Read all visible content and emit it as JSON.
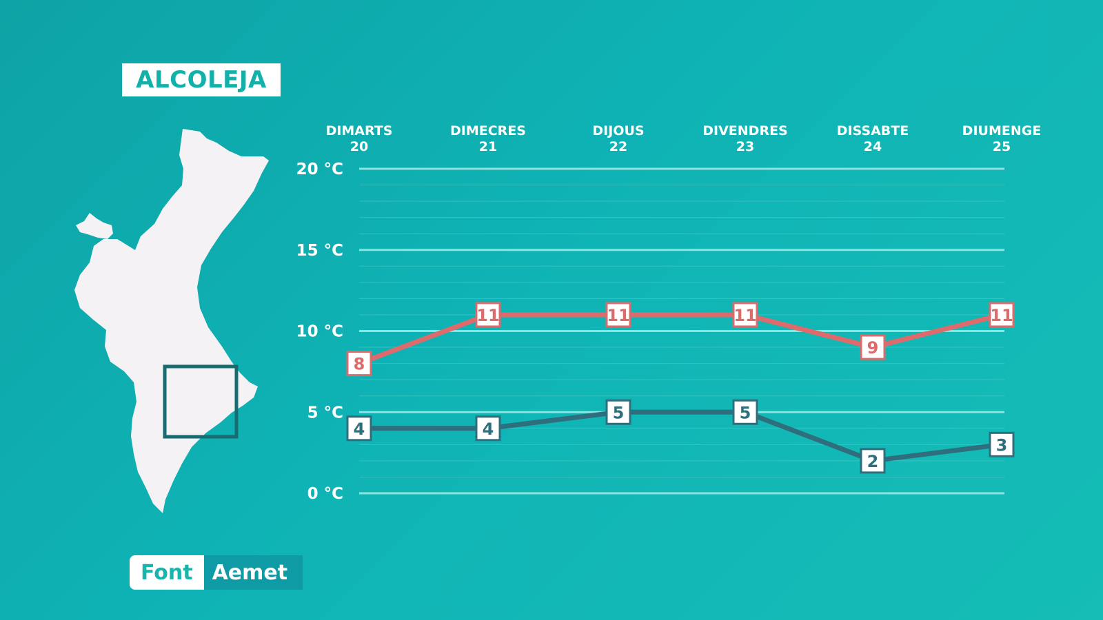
{
  "location": "ALCOLEJA",
  "source": {
    "label": "Font",
    "value": "Aemet"
  },
  "colors": {
    "background": "#0fb3b5",
    "max_series": "#de6b6b",
    "min_series": "#2f6e7c",
    "gridline": "#8fe3de"
  },
  "chart_data": {
    "type": "line",
    "categories": [
      {
        "day": "DIMARTS",
        "date": "20"
      },
      {
        "day": "DIMECRES",
        "date": "21"
      },
      {
        "day": "DIJOUS",
        "date": "22"
      },
      {
        "day": "DIVENDRES",
        "date": "23"
      },
      {
        "day": "DISSABTE",
        "date": "24"
      },
      {
        "day": "DIUMENGE",
        "date": "25"
      }
    ],
    "series": [
      {
        "key": "max",
        "values": [
          8,
          11,
          11,
          11,
          9,
          11
        ],
        "color": "#de6b6b"
      },
      {
        "key": "min",
        "values": [
          4,
          4,
          5,
          5,
          2,
          3
        ],
        "color": "#2f6e7c"
      }
    ],
    "yticks": [
      {
        "value": 20,
        "label": "20 °C"
      },
      {
        "value": 15,
        "label": "15 °C"
      },
      {
        "value": 10,
        "label": "10 °C"
      },
      {
        "value": 5,
        "label": "5 °C"
      },
      {
        "value": 0,
        "label": "0 °C"
      }
    ],
    "ylim": [
      0,
      20
    ],
    "grid": true,
    "title": "",
    "xlabel": "",
    "ylabel": ""
  }
}
